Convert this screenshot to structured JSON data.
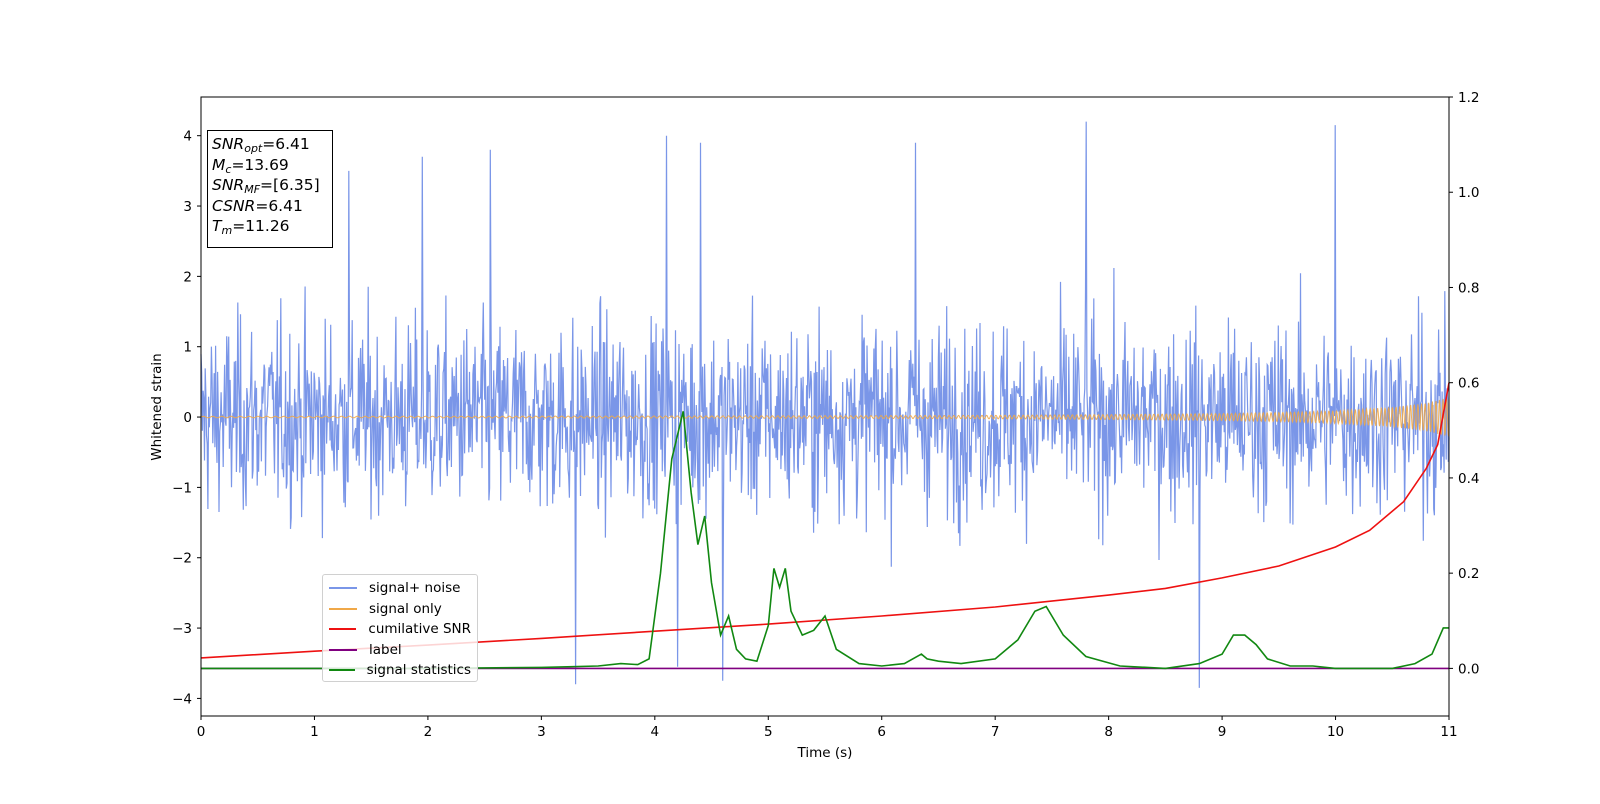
{
  "chart_data": {
    "type": "line",
    "xlabel": "Time (s)",
    "ylabel": "Whitened strain",
    "xlim": [
      0,
      11
    ],
    "ylim": [
      -4.25,
      4.55
    ],
    "y2lim": [
      -0.1,
      1.2
    ],
    "xticks": [
      "0",
      "1",
      "2",
      "3",
      "4",
      "5",
      "6",
      "7",
      "8",
      "9",
      "10",
      "11"
    ],
    "yticks": [
      "−4",
      "−3",
      "−2",
      "−1",
      "0",
      "1",
      "2",
      "3",
      "4"
    ],
    "y2ticks": [
      "0.0",
      "0.2",
      "0.4",
      "0.6",
      "0.8",
      "1.0",
      "1.2"
    ],
    "grid": false,
    "legend_position": "lower-left",
    "info_box": {
      "snr_opt": "=6.41",
      "mc": "=13.69",
      "snr_mf": "=[6.35]",
      "csnr": "=6.41",
      "tm": "=11.26"
    },
    "series": [
      {
        "name": "signal+ noise",
        "color": "#7a96e8",
        "axis": "left",
        "description_values": "noise band approx within [-2.5, 2.5], spikes to ~4.2 and ~-3.9",
        "spikes_x": [
          1.3,
          2.55,
          4.1,
          4.4,
          6.3,
          7.8,
          10.0,
          1.95,
          3.3,
          4.2,
          8.8,
          4.6
        ],
        "spikes_y": [
          3.5,
          3.8,
          4.0,
          3.9,
          3.9,
          4.2,
          4.15,
          3.7,
          -3.8,
          -3.55,
          -3.85,
          -3.75
        ]
      },
      {
        "name": "signal only",
        "color": "#f0a848",
        "axis": "left",
        "x": [
          0,
          2,
          4,
          6,
          7,
          8,
          9,
          9.5,
          10,
          10.5,
          10.8,
          11
        ],
        "amplitude": [
          0.01,
          0.012,
          0.015,
          0.02,
          0.025,
          0.035,
          0.05,
          0.065,
          0.09,
          0.14,
          0.2,
          0.28
        ]
      },
      {
        "name": "cumilative SNR",
        "color": "#ee1111",
        "axis": "right",
        "x": [
          0,
          1,
          2,
          3,
          4,
          5,
          6,
          7,
          8,
          8.5,
          9,
          9.5,
          10,
          10.3,
          10.6,
          10.8,
          10.9,
          11
        ],
        "values": [
          0.022,
          0.036,
          0.049,
          0.063,
          0.078,
          0.093,
          0.11,
          0.129,
          0.154,
          0.168,
          0.19,
          0.215,
          0.255,
          0.29,
          0.35,
          0.42,
          0.47,
          0.6
        ]
      },
      {
        "name": "label",
        "color": "#800080",
        "axis": "right",
        "x": [
          0,
          11
        ],
        "values": [
          0.0,
          0.0
        ]
      },
      {
        "name": "signal statistics",
        "color": "#118811",
        "axis": "right",
        "x": [
          0,
          1,
          2,
          3,
          3.5,
          3.7,
          3.85,
          3.95,
          4.05,
          4.15,
          4.25,
          4.32,
          4.38,
          4.44,
          4.5,
          4.58,
          4.65,
          4.72,
          4.8,
          4.9,
          5.0,
          5.05,
          5.1,
          5.15,
          5.2,
          5.3,
          5.4,
          5.5,
          5.6,
          5.8,
          6.0,
          6.2,
          6.35,
          6.4,
          6.5,
          6.7,
          7.0,
          7.2,
          7.35,
          7.45,
          7.6,
          7.8,
          8.1,
          8.5,
          8.8,
          9.0,
          9.1,
          9.2,
          9.3,
          9.4,
          9.6,
          9.8,
          10.0,
          10.5,
          10.7,
          10.85,
          10.95,
          11
        ],
        "values": [
          0.0,
          0.0,
          0.0,
          0.002,
          0.005,
          0.01,
          0.008,
          0.02,
          0.2,
          0.44,
          0.54,
          0.37,
          0.26,
          0.32,
          0.18,
          0.07,
          0.11,
          0.04,
          0.02,
          0.015,
          0.09,
          0.21,
          0.17,
          0.21,
          0.12,
          0.07,
          0.08,
          0.11,
          0.04,
          0.01,
          0.005,
          0.01,
          0.03,
          0.02,
          0.015,
          0.01,
          0.02,
          0.06,
          0.12,
          0.13,
          0.07,
          0.025,
          0.005,
          0.0,
          0.01,
          0.03,
          0.07,
          0.07,
          0.05,
          0.02,
          0.005,
          0.005,
          0.0,
          0.0,
          0.01,
          0.03,
          0.085,
          0.085
        ]
      }
    ]
  }
}
